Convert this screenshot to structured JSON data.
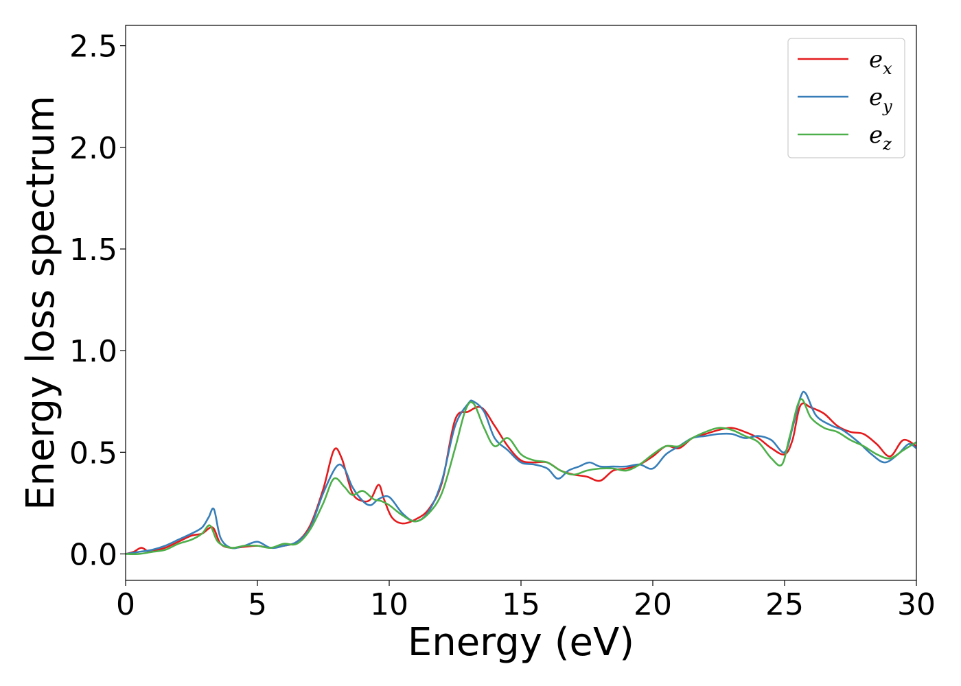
{
  "chart_data": {
    "type": "line",
    "title": "",
    "xlabel": "Energy (eV)",
    "ylabel": "Energy loss spectrum",
    "xlim": [
      0,
      30
    ],
    "ylim": [
      -0.13,
      2.6
    ],
    "xticks": [
      0,
      5,
      10,
      15,
      20,
      25,
      30
    ],
    "xtick_labels": [
      "0",
      "5",
      "10",
      "15",
      "20",
      "25",
      "30"
    ],
    "yticks": [
      0.0,
      0.5,
      1.0,
      1.5,
      2.0,
      2.5
    ],
    "ytick_labels": [
      "0.0",
      "0.5",
      "1.0",
      "1.5",
      "2.0",
      "2.5"
    ],
    "grid": false,
    "legend_position": "top-right",
    "series": [
      {
        "name": "e_x",
        "legend_base": "e",
        "legend_sub": "x",
        "color": "#e41a1c",
        "x": [
          0,
          0.3,
          0.6,
          0.9,
          1.2,
          1.5,
          2.0,
          2.5,
          2.9,
          3.3,
          3.6,
          4.0,
          4.5,
          5.0,
          5.5,
          6.0,
          6.5,
          7.0,
          7.5,
          7.9,
          8.2,
          8.6,
          9.0,
          9.3,
          9.6,
          9.8,
          10.1,
          10.5,
          11.0,
          11.5,
          12.0,
          12.5,
          13.0,
          13.5,
          14.0,
          14.5,
          15.0,
          15.5,
          16.0,
          16.5,
          17.0,
          17.5,
          18.0,
          18.5,
          19.0,
          19.5,
          20.0,
          20.5,
          21.0,
          21.5,
          22.0,
          22.5,
          23.0,
          23.5,
          24.0,
          24.5,
          25.0,
          25.3,
          25.6,
          26.0,
          26.5,
          27.0,
          27.5,
          28.0,
          28.5,
          29.0,
          29.5,
          30.0
        ],
        "y": [
          0.0,
          0.01,
          0.03,
          0.01,
          0.02,
          0.03,
          0.06,
          0.09,
          0.1,
          0.13,
          0.05,
          0.03,
          0.035,
          0.04,
          0.03,
          0.04,
          0.06,
          0.14,
          0.32,
          0.51,
          0.47,
          0.3,
          0.26,
          0.27,
          0.34,
          0.27,
          0.18,
          0.15,
          0.17,
          0.22,
          0.35,
          0.66,
          0.7,
          0.72,
          0.63,
          0.53,
          0.46,
          0.45,
          0.45,
          0.41,
          0.39,
          0.38,
          0.36,
          0.41,
          0.42,
          0.44,
          0.48,
          0.53,
          0.52,
          0.57,
          0.59,
          0.61,
          0.62,
          0.6,
          0.57,
          0.52,
          0.49,
          0.56,
          0.73,
          0.72,
          0.69,
          0.63,
          0.6,
          0.59,
          0.54,
          0.48,
          0.56,
          0.53
        ]
      },
      {
        "name": "e_y",
        "legend_base": "e",
        "legend_sub": "y",
        "color": "#377eb8",
        "x": [
          0,
          0.5,
          1.0,
          1.5,
          2.0,
          2.5,
          2.9,
          3.15,
          3.35,
          3.6,
          4.0,
          4.5,
          5.0,
          5.5,
          6.0,
          6.5,
          7.0,
          7.5,
          8.0,
          8.3,
          8.6,
          9.0,
          9.3,
          9.6,
          10.0,
          10.5,
          11.0,
          11.5,
          12.0,
          12.5,
          13.0,
          13.2,
          13.6,
          14.0,
          14.5,
          15.0,
          15.5,
          16.0,
          16.4,
          16.8,
          17.2,
          17.6,
          18.0,
          18.5,
          19.0,
          19.5,
          20.0,
          20.5,
          21.0,
          21.5,
          22.0,
          22.5,
          23.0,
          23.5,
          24.0,
          24.5,
          25.0,
          25.3,
          25.6,
          25.8,
          26.2,
          26.8,
          27.2,
          27.8,
          28.3,
          28.8,
          29.3,
          29.7,
          30.0
        ],
        "y": [
          0.0,
          0.01,
          0.02,
          0.04,
          0.07,
          0.1,
          0.13,
          0.18,
          0.22,
          0.08,
          0.03,
          0.04,
          0.06,
          0.03,
          0.04,
          0.06,
          0.13,
          0.3,
          0.43,
          0.42,
          0.33,
          0.26,
          0.24,
          0.27,
          0.28,
          0.2,
          0.16,
          0.21,
          0.36,
          0.63,
          0.74,
          0.75,
          0.7,
          0.57,
          0.51,
          0.45,
          0.44,
          0.42,
          0.37,
          0.41,
          0.43,
          0.45,
          0.43,
          0.43,
          0.43,
          0.44,
          0.42,
          0.49,
          0.53,
          0.57,
          0.58,
          0.59,
          0.59,
          0.57,
          0.58,
          0.56,
          0.5,
          0.62,
          0.77,
          0.79,
          0.68,
          0.63,
          0.61,
          0.55,
          0.49,
          0.45,
          0.49,
          0.54,
          0.52
        ]
      },
      {
        "name": "e_z",
        "legend_base": "e",
        "legend_sub": "z",
        "color": "#4daf4a",
        "x": [
          0,
          0.5,
          1.0,
          1.5,
          2.0,
          2.5,
          2.9,
          3.2,
          3.5,
          4.0,
          4.5,
          5.0,
          5.5,
          6.0,
          6.5,
          7.0,
          7.5,
          7.9,
          8.3,
          8.6,
          9.0,
          9.4,
          9.7,
          10.0,
          10.5,
          11.0,
          11.5,
          12.0,
          12.5,
          12.9,
          13.2,
          13.6,
          14.0,
          14.5,
          15.0,
          15.5,
          16.0,
          16.5,
          17.0,
          17.5,
          18.0,
          18.5,
          19.0,
          19.5,
          20.0,
          20.5,
          21.0,
          21.5,
          22.0,
          22.5,
          23.0,
          23.5,
          24.0,
          24.5,
          24.9,
          25.2,
          25.6,
          26.0,
          26.5,
          27.0,
          27.5,
          28.0,
          28.5,
          29.0,
          29.5,
          30.0
        ],
        "y": [
          0.0,
          0.0,
          0.01,
          0.02,
          0.05,
          0.07,
          0.1,
          0.14,
          0.06,
          0.03,
          0.04,
          0.04,
          0.03,
          0.05,
          0.05,
          0.12,
          0.25,
          0.37,
          0.33,
          0.29,
          0.31,
          0.27,
          0.26,
          0.24,
          0.19,
          0.16,
          0.2,
          0.3,
          0.52,
          0.71,
          0.74,
          0.62,
          0.53,
          0.57,
          0.49,
          0.46,
          0.45,
          0.41,
          0.39,
          0.41,
          0.42,
          0.42,
          0.41,
          0.44,
          0.49,
          0.53,
          0.53,
          0.57,
          0.6,
          0.62,
          0.61,
          0.58,
          0.55,
          0.47,
          0.44,
          0.58,
          0.76,
          0.67,
          0.62,
          0.6,
          0.56,
          0.53,
          0.49,
          0.47,
          0.51,
          0.55
        ]
      }
    ]
  }
}
